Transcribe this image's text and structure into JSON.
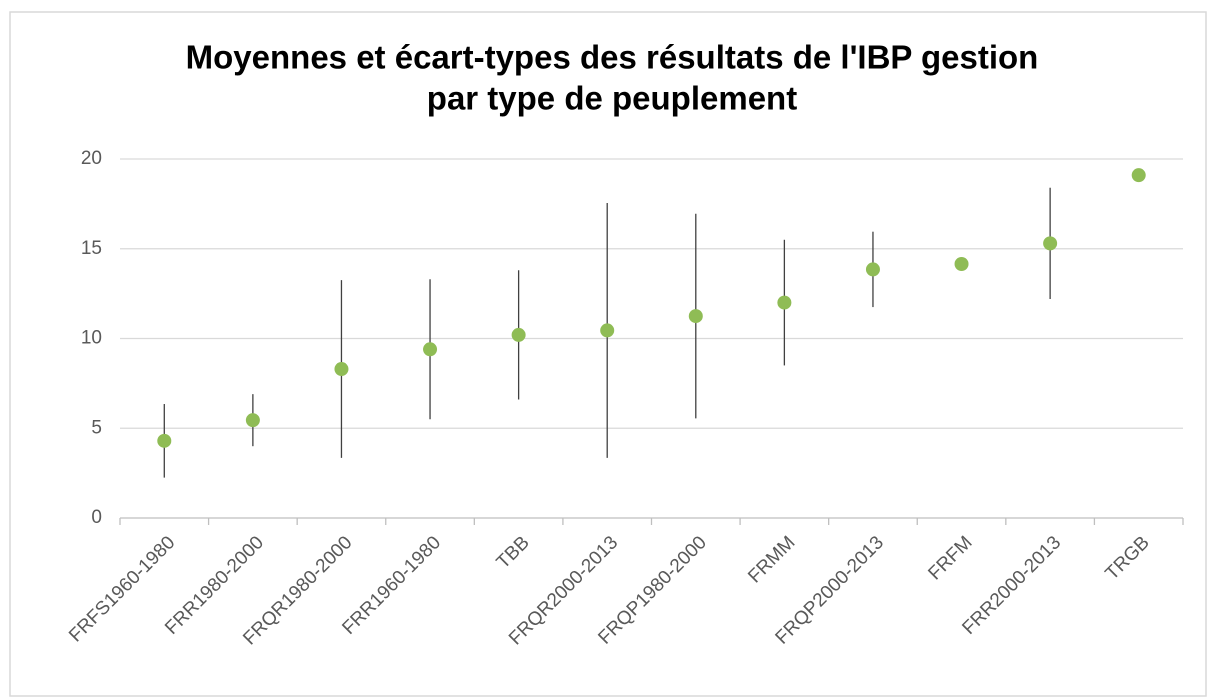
{
  "chart_data": {
    "type": "errorbar",
    "title": [
      "Moyennes et écart-types des résultats de l'IBP gestion",
      "par type de peuplement"
    ],
    "categories": [
      "FRFS1960-1980",
      "FRR1980-2000",
      "FRQR1980-2000",
      "FRR1960-1980",
      "TBB",
      "FRQR2000-2013",
      "FRQP1980-2000",
      "FRMM",
      "FRQP2000-2013",
      "FRFM",
      "FRR2000-2013",
      "TRGB"
    ],
    "values": [
      4.3,
      5.45,
      8.3,
      9.4,
      10.2,
      10.45,
      11.25,
      12.0,
      13.85,
      14.15,
      15.3,
      19.1
    ],
    "errors": [
      2.05,
      1.45,
      4.95,
      3.9,
      3.6,
      7.1,
      5.7,
      3.5,
      2.1,
      null,
      3.1,
      null
    ],
    "color": "#8fbc55",
    "error_color": "#404040",
    "ylim": [
      0,
      20
    ],
    "yticks": [
      0,
      5,
      10,
      15,
      20
    ],
    "grid": true
  }
}
